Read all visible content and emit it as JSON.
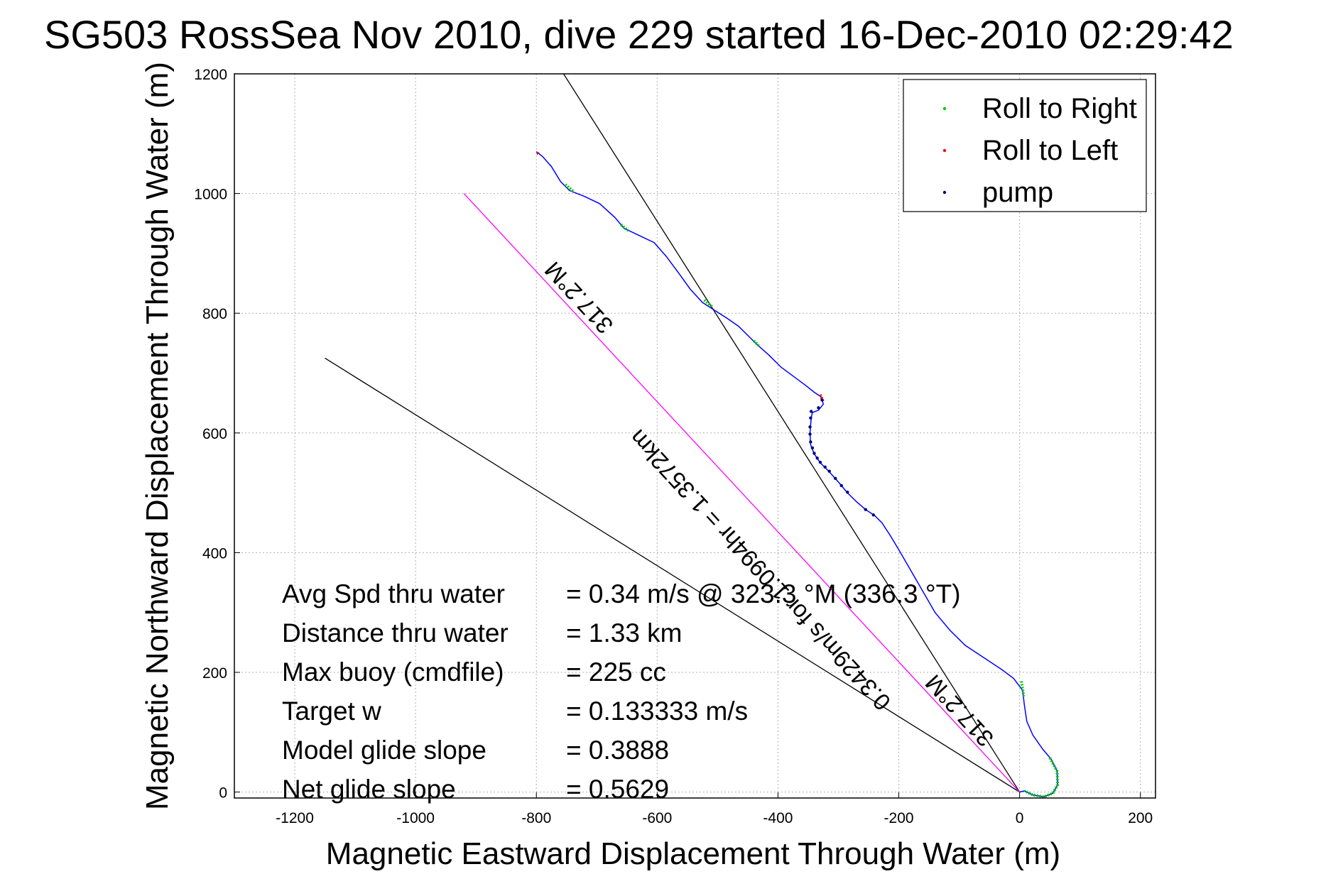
{
  "chart_data": {
    "type": "line",
    "title": "SG503 RossSea Nov 2010, dive 229 started 16-Dec-2010 02:29:42",
    "xlabel": "Magnetic Eastward Displacement Through Water (m)",
    "ylabel": "Magnetic Northward Displacement Through Water (m)",
    "xlim": [
      -1300,
      225
    ],
    "ylim": [
      -10,
      1200
    ],
    "xticks": [
      -1200,
      -1000,
      -800,
      -600,
      -400,
      -200,
      0,
      200
    ],
    "yticks": [
      0,
      200,
      400,
      600,
      800,
      1000,
      1200
    ],
    "grid": true,
    "legend_position": "top-right",
    "legend": [
      {
        "label": "Roll to Right",
        "color": "#00cc00"
      },
      {
        "label": "Roll to Left",
        "color": "#ff0000"
      },
      {
        "label": "pump",
        "color": "#000080"
      }
    ],
    "track": {
      "color": "#0000ff",
      "points": [
        [
          -800,
          1070
        ],
        [
          -790,
          1062
        ],
        [
          -775,
          1045
        ],
        [
          -760,
          1020
        ],
        [
          -745,
          1005
        ],
        [
          -720,
          995
        ],
        [
          -695,
          983
        ],
        [
          -670,
          960
        ],
        [
          -655,
          942
        ],
        [
          -630,
          930
        ],
        [
          -605,
          918
        ],
        [
          -585,
          895
        ],
        [
          -565,
          868
        ],
        [
          -545,
          840
        ],
        [
          -525,
          818
        ],
        [
          -505,
          805
        ],
        [
          -485,
          792
        ],
        [
          -465,
          778
        ],
        [
          -450,
          763
        ],
        [
          -435,
          748
        ],
        [
          -415,
          730
        ],
        [
          -395,
          710
        ],
        [
          -375,
          695
        ],
        [
          -355,
          680
        ],
        [
          -340,
          668
        ],
        [
          -328,
          660
        ],
        [
          -325,
          648
        ],
        [
          -333,
          638
        ],
        [
          -343,
          634
        ],
        [
          -345,
          625
        ],
        [
          -347,
          600
        ],
        [
          -346,
          580
        ],
        [
          -340,
          565
        ],
        [
          -330,
          550
        ],
        [
          -315,
          535
        ],
        [
          -300,
          518
        ],
        [
          -285,
          500
        ],
        [
          -270,
          485
        ],
        [
          -255,
          472
        ],
        [
          -240,
          462
        ],
        [
          -228,
          450
        ],
        [
          -215,
          430
        ],
        [
          -200,
          405
        ],
        [
          -180,
          370
        ],
        [
          -160,
          335
        ],
        [
          -140,
          300
        ],
        [
          -115,
          270
        ],
        [
          -90,
          245
        ],
        [
          -60,
          225
        ],
        [
          -30,
          205
        ],
        [
          -10,
          190
        ],
        [
          5,
          170
        ],
        [
          8,
          145
        ],
        [
          12,
          118
        ],
        [
          22,
          95
        ],
        [
          38,
          72
        ],
        [
          52,
          55
        ],
        [
          62,
          35
        ],
        [
          63,
          12
        ],
        [
          55,
          -2
        ],
        [
          40,
          -8
        ],
        [
          22,
          -5
        ],
        [
          8,
          2
        ],
        [
          0,
          0
        ]
      ],
      "roll_right_segments": [
        [
          [
            -752,
            1015
          ],
          [
            -738,
            1003
          ]
        ],
        [
          [
            -660,
            948
          ],
          [
            -648,
            938
          ]
        ],
        [
          [
            -522,
            822
          ],
          [
            -508,
            810
          ]
        ],
        [
          [
            -440,
            754
          ],
          [
            -432,
            746
          ]
        ],
        [
          [
            3,
            185
          ],
          [
            7,
            160
          ]
        ],
        [
          [
            50,
            57
          ],
          [
            62,
            35
          ],
          [
            63,
            12
          ],
          [
            55,
            -2
          ],
          [
            40,
            -8
          ],
          [
            22,
            -5
          ],
          [
            8,
            2
          ]
        ]
      ],
      "roll_left_segments": [
        [
          [
            -798,
            1068
          ],
          [
            -796,
            1065
          ]
        ],
        [
          [
            -330,
            664
          ],
          [
            -325,
            652
          ]
        ]
      ],
      "pump_points": [
        [
          -345,
          636
        ],
        [
          -346,
          625
        ],
        [
          -347,
          610
        ],
        [
          -347,
          598
        ],
        [
          -346,
          585
        ],
        [
          -343,
          575
        ],
        [
          -340,
          566
        ],
        [
          -335,
          558
        ],
        [
          -330,
          551
        ],
        [
          -322,
          543
        ],
        [
          -315,
          536
        ],
        [
          -305,
          524
        ],
        [
          -295,
          512
        ],
        [
          -285,
          501
        ],
        [
          -255,
          472
        ],
        [
          -242,
          463
        ],
        [
          -333,
          642
        ],
        [
          -327,
          655
        ]
      ]
    },
    "heading_line_current": {
      "color": "#ff00ff",
      "from": [
        -920,
        1000
      ],
      "to": [
        0,
        0
      ]
    },
    "heading_line_target": {
      "color": "#000000",
      "from": [
        -755,
        1200
      ],
      "to": [
        0,
        0
      ]
    },
    "heading_line_bearing": {
      "color": "#000000",
      "from": [
        -1150,
        725
      ],
      "to": [
        0,
        0
      ]
    },
    "rotated_labels": [
      {
        "text": "317.2°M",
        "anchor": [
          -720,
          835
        ],
        "angle_deg": 47.3
      },
      {
        "text": "0.3429m/s for 1.0994hr = 1.3572km",
        "anchor": [
          -420,
          380
        ],
        "angle_deg": 47.3
      },
      {
        "text": "317.2°M",
        "anchor": [
          -90,
          145
        ],
        "angle_deg": 47.3
      }
    ],
    "annotations": [
      {
        "name": "Avg Spd thru water",
        "value": "=  0.34 m/s @ 323.3 °M (336.3 °T)"
      },
      {
        "name": "Distance thru water",
        "value": "=  1.33 km"
      },
      {
        "name": "Max buoy (cmdfile)",
        "value": "= 225 cc"
      },
      {
        "name": "Target w",
        "value": "= 0.133333 m/s"
      },
      {
        "name": "Model glide slope",
        "value": "= 0.3888"
      },
      {
        "name": "Net glide slope",
        "value": "= 0.5629"
      }
    ]
  }
}
